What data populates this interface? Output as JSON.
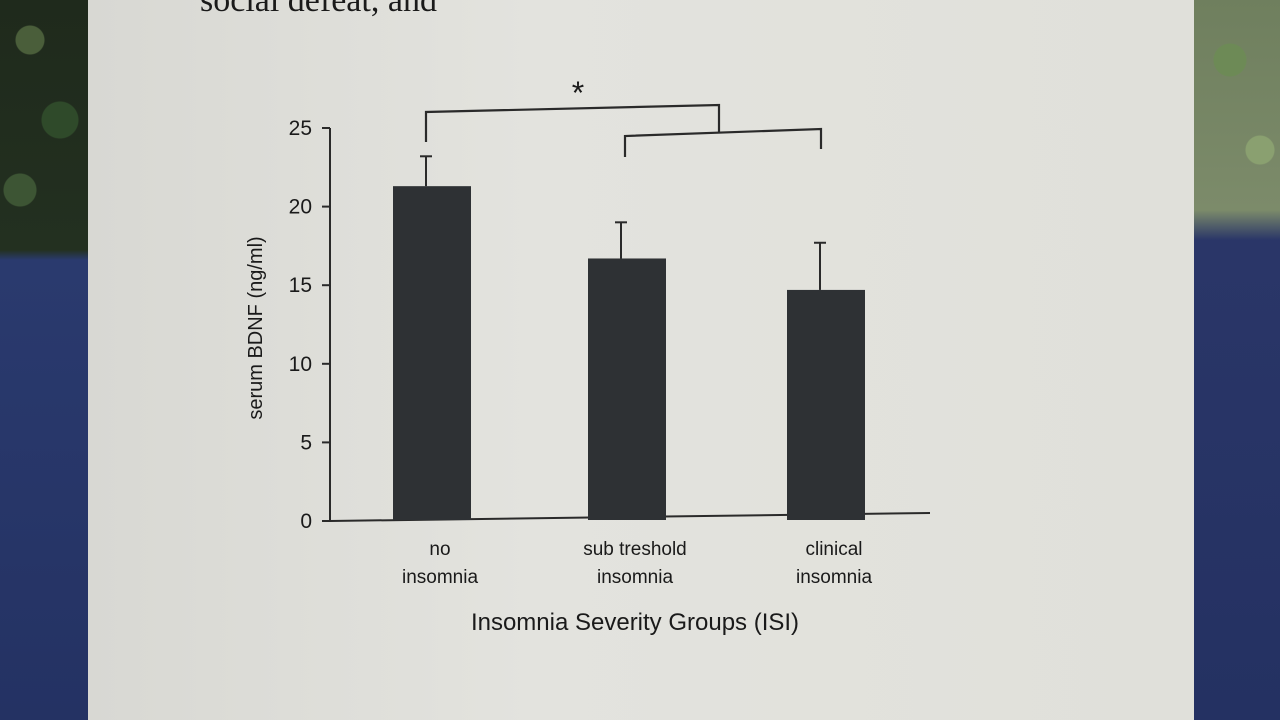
{
  "chart_data": {
    "type": "bar",
    "categories": [
      [
        "no",
        "insomnia"
      ],
      [
        "sub treshold",
        "insomnia"
      ],
      [
        "clinical",
        "insomnia"
      ]
    ],
    "values": [
      21.3,
      16.7,
      14.7
    ],
    "errors": [
      1.9,
      2.3,
      3.0
    ],
    "xlabel": "Insomnia Severity Groups (ISI)",
    "ylabel": "serum BDNF (ng/ml)",
    "ylim": [
      0,
      25
    ],
    "yticks": [
      0,
      5,
      10,
      15,
      20,
      25
    ],
    "significance": {
      "symbol": "*"
    },
    "bar_color": "#2e3134",
    "grid": false
  },
  "page": {
    "top_text": "social defeat,    and"
  }
}
